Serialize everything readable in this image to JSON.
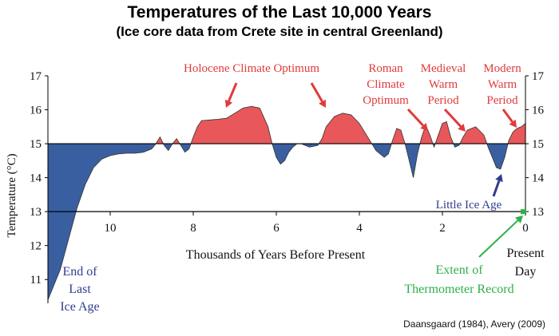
{
  "title": "Temperatures of the Last 10,000 Years",
  "subtitle": "(Ice core data from Crete site in central Greenland)",
  "source": "Daansgaard (1984), Avery (2009)",
  "chart_data": {
    "type": "area",
    "title": "Temperatures of the Last 10,000 Years",
    "subtitle": "(Ice core data from Crete site in central Greenland)",
    "xlabel": "Thousands of Years Before Present",
    "ylabel": "Temperature (°C)",
    "xlim": [
      11.5,
      0
    ],
    "ylim": [
      10.3,
      17
    ],
    "baseline": 15,
    "thermometer_line": 13,
    "xticks": [
      10,
      8,
      6,
      4,
      2,
      0
    ],
    "xtick_labels": [
      "10",
      "8",
      "6",
      "4",
      "2",
      "0"
    ],
    "yticks": [
      11,
      12,
      13,
      14,
      15,
      16,
      17
    ],
    "ytick_labels": [
      "11",
      "12",
      "13",
      "14",
      "15",
      "16",
      "17"
    ],
    "colors": {
      "above": "#e8575a",
      "below": "#3a5fa0",
      "outline": "#1a1a1a",
      "red_text": "#e03a3a",
      "blue_text": "#2e3d8f",
      "green_text": "#2eb04a"
    },
    "series": [
      {
        "x": [
          11.5,
          11.2,
          11.0,
          10.8,
          10.6,
          10.4,
          10.2,
          10.0,
          9.8,
          9.6,
          9.4,
          9.2,
          9.0,
          8.9,
          8.8,
          8.7,
          8.6,
          8.5,
          8.4,
          8.3,
          8.2,
          8.1,
          8.0,
          7.9,
          7.8,
          7.6,
          7.4,
          7.2,
          7.0,
          6.8,
          6.6,
          6.4,
          6.2,
          6.1,
          6.0,
          5.9,
          5.8,
          5.7,
          5.6,
          5.5,
          5.4,
          5.3,
          5.2,
          5.0,
          4.9,
          4.8,
          4.6,
          4.4,
          4.2,
          4.0,
          3.8,
          3.6,
          3.4,
          3.3,
          3.2,
          3.1,
          3.0,
          2.9,
          2.8,
          2.7,
          2.6,
          2.5,
          2.4,
          2.3,
          2.2,
          2.1,
          2.0,
          1.9,
          1.8,
          1.7,
          1.6,
          1.5,
          1.4,
          1.2,
          1.0,
          0.9,
          0.8,
          0.7,
          0.6,
          0.5,
          0.4,
          0.3,
          0.2,
          0.1,
          0.0
        ],
        "values": [
          10.4,
          11.3,
          12.2,
          13.1,
          13.8,
          14.3,
          14.55,
          14.65,
          14.7,
          14.72,
          14.72,
          14.75,
          14.85,
          15.0,
          15.2,
          14.95,
          14.8,
          15.0,
          15.15,
          14.95,
          14.75,
          14.85,
          15.2,
          15.5,
          15.68,
          15.7,
          15.72,
          15.75,
          15.9,
          16.05,
          16.1,
          16.05,
          15.5,
          15.0,
          14.6,
          14.4,
          14.5,
          14.75,
          14.9,
          15.0,
          15.0,
          14.95,
          14.9,
          14.95,
          15.15,
          15.5,
          15.8,
          15.9,
          15.85,
          15.6,
          15.2,
          14.8,
          14.6,
          14.7,
          15.1,
          15.45,
          15.4,
          15.0,
          14.5,
          14.0,
          14.7,
          15.2,
          15.55,
          15.25,
          14.9,
          15.25,
          15.6,
          15.65,
          15.2,
          14.9,
          14.95,
          15.2,
          15.4,
          15.5,
          15.25,
          14.9,
          14.6,
          14.3,
          14.25,
          14.6,
          15.1,
          15.35,
          15.45,
          15.5,
          15.6
        ]
      }
    ],
    "annotations": [
      {
        "text": "Holocene Climate Optimum",
        "color": "red"
      },
      {
        "text": "Roman Climate Optimum",
        "color": "red"
      },
      {
        "text": "Medieval Warm Period",
        "color": "red"
      },
      {
        "text": "Modern Warm Period",
        "color": "red"
      },
      {
        "text": "Little Ice Age",
        "color": "blue"
      },
      {
        "text": "End of Last Ice Age",
        "color": "blue"
      },
      {
        "text": "Extent of Thermometer Record",
        "color": "green"
      },
      {
        "text": "Present Day",
        "color": "black"
      }
    ]
  },
  "labels": {
    "holocene": "Holocene Climate Optimum",
    "roman": [
      "Roman",
      "Climate",
      "Optimum"
    ],
    "medieval": [
      "Medieval",
      "Warm",
      "Period"
    ],
    "modern": [
      "Modern",
      "Warm",
      "Period"
    ],
    "little_ice_age": "Little Ice Age",
    "end_ice_age": [
      "End of",
      "Last",
      "Ice Age"
    ],
    "thermometer": [
      "Extent of",
      "Thermometer Record"
    ],
    "present": [
      "Present",
      "Day"
    ]
  }
}
